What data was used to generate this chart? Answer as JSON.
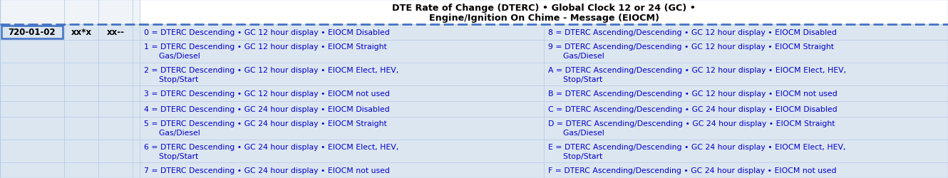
{
  "title_line1": "DTE Rate of Change (DTERC) • Global Clock 12 or 24 (GC) •",
  "title_line2": "Engine/Ignition On Chime - Message (EIOCM)",
  "title_bg": "#ffffff",
  "title_color": "#000000",
  "cell_bg": "#dce6f1",
  "cell_bg_light": "#e9f0f8",
  "header_border": "#4472c4",
  "grid_color": "#b8cce4",
  "left_text_color": "#000000",
  "data_text_color": "#0000cc",
  "left_col1_text": "720-01-02",
  "left_col2_text": "xx*x",
  "left_col3_text": "xx--",
  "fig_width": 13.3,
  "fig_height": 2.51,
  "dpi": 100,
  "title_rows": [
    "DTE Rate of Change (DTERC) • Global Clock 12 or 24 (GC) •",
    "Engine/Ignition On Chime - Message (EIOCM)"
  ],
  "rows": [
    {
      "left": "0 = DTERC Descending • GC 12 hour display • EIOCM Disabled",
      "right": "8 = DTERC Ascending/Descending • GC 12 hour display • EIOCM Disabled",
      "multiline": false
    },
    {
      "left": "1 = DTERC Descending • GC 12 hour display • EIOCM Straight\n      Gas/Diesel",
      "right": "9 = DTERC Ascending/Descending • GC 12 hour display • EIOCM Straight\n      Gas/Diesel",
      "multiline": true
    },
    {
      "left": "2 = DTERC Descending • GC 12 hour display • EIOCM Elect, HEV,\n      Stop/Start",
      "right": "A = DTERC Ascending/Descending • GC 12 hour display • EIOCM Elect, HEV,\n      Stop/Start",
      "multiline": true
    },
    {
      "left": "3 = DTERC Descending • GC 12 hour display • EIOCM not used",
      "right": "B = DTERC Ascending/Descending • GC 12 hour display • EIOCM not used",
      "multiline": false
    },
    {
      "left": "4 = DTERC Descending • GC 24 hour display • EIOCM Disabled",
      "right": "C = DTERC Ascending/Descending • GC 24 hour display • EIOCM Disabled",
      "multiline": false
    },
    {
      "left": "5 = DTERC Descending • GC 24 hour display • EIOCM Straight\n      Gas/Diesel",
      "right": "D = DTERC Ascending/Descending • GC 24 hour display • EIOCM Straight\n      Gas/Diesel",
      "multiline": true
    },
    {
      "left": "6 = DTERC Descending • GC 24 hour display • EIOCM Elect, HEV,\n      Stop/Start",
      "right": "E = DTERC Ascending/Descending • GC 24 hour display • EIOCM Elect, HEV,\n      Stop/Start",
      "multiline": true
    },
    {
      "left": "7 = DTERC Descending • GC 24 hour display • EIOCM not used",
      "right": "F = DTERC Ascending/Descending • GC 24 hour display • EIOCM not used",
      "multiline": false
    }
  ]
}
